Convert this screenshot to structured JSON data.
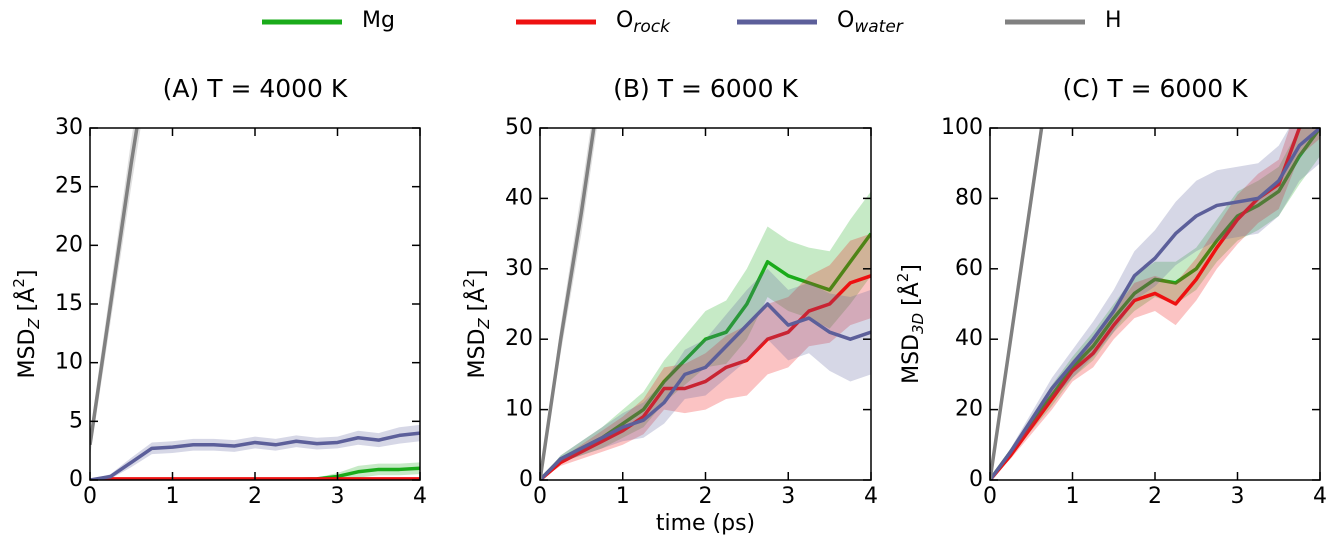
{
  "chart_data": [
    {
      "type": "line",
      "title": "(A) T = 4000 K",
      "ylabel": {
        "base": "MSD",
        "sub": "Z",
        "unit": " [Å",
        "sup": "2",
        "close": "]"
      },
      "x": [
        0,
        0.25,
        0.5,
        0.75,
        1,
        1.25,
        1.5,
        1.75,
        2,
        2.25,
        2.5,
        2.75,
        3,
        3.25,
        3.5,
        3.75,
        4
      ],
      "xlim": [
        0,
        4
      ],
      "xticks": [
        0,
        1,
        2,
        3,
        4
      ],
      "ylim": [
        0,
        30
      ],
      "yticks": [
        0,
        5,
        10,
        15,
        20,
        25,
        30
      ],
      "series": [
        {
          "name": "Mg",
          "color": "#1aab1a",
          "values": [
            0,
            0,
            0,
            0,
            0,
            0,
            0,
            0,
            0,
            0,
            0.05,
            0.1,
            0.3,
            0.7,
            0.9,
            0.9,
            1.0
          ],
          "errors": [
            0,
            0,
            0,
            0,
            0,
            0,
            0,
            0,
            0,
            0,
            0.05,
            0.1,
            0.3,
            0.5,
            0.5,
            0.5,
            0.5
          ]
        },
        {
          "name": "O",
          "name_sub": "rock",
          "color": "#ee1111",
          "values": [
            0,
            0.1,
            0.1,
            0.1,
            0.1,
            0.1,
            0.1,
            0.1,
            0.1,
            0.1,
            0.1,
            0.1,
            0.1,
            0.1,
            0.1,
            0.1,
            0.1
          ],
          "errors": [
            0,
            0.05,
            0.05,
            0.05,
            0.05,
            0.05,
            0.05,
            0.05,
            0.05,
            0.05,
            0.05,
            0.05,
            0.05,
            0.05,
            0.05,
            0.05,
            0.05
          ]
        },
        {
          "name": "O",
          "name_sub": "water",
          "color": "#5c5f9a",
          "values": [
            0,
            0.3,
            1.5,
            2.7,
            2.8,
            3.0,
            3.0,
            2.9,
            3.2,
            3.0,
            3.3,
            3.1,
            3.2,
            3.6,
            3.4,
            3.8,
            4.0
          ],
          "errors": [
            0,
            0.2,
            0.4,
            0.5,
            0.5,
            0.5,
            0.5,
            0.5,
            0.5,
            0.5,
            0.5,
            0.5,
            0.5,
            0.6,
            0.6,
            0.7,
            0.7
          ]
        },
        {
          "name": "H",
          "color": "#808080",
          "values": [
            3,
            15,
            27,
            38,
            null,
            null,
            null,
            null,
            null,
            null,
            null,
            null,
            null,
            null,
            null,
            null,
            null
          ],
          "errors": [
            1,
            1.5,
            2,
            2,
            null,
            null,
            null,
            null,
            null,
            null,
            null,
            null,
            null,
            null,
            null,
            null,
            null
          ]
        }
      ]
    },
    {
      "type": "line",
      "title": "(B) T = 6000 K",
      "xlabel": "time (ps)",
      "ylabel": {
        "base": "MSD",
        "sub": "Z",
        "unit": " [Å",
        "sup": "2",
        "close": "]"
      },
      "x": [
        0,
        0.25,
        0.5,
        0.75,
        1,
        1.25,
        1.5,
        1.75,
        2,
        2.25,
        2.5,
        2.75,
        3,
        3.25,
        3.5,
        3.75,
        4
      ],
      "xlim": [
        0,
        4
      ],
      "xticks": [
        0,
        1,
        2,
        3,
        4
      ],
      "ylim": [
        0,
        50
      ],
      "yticks": [
        0,
        10,
        20,
        30,
        40,
        50
      ],
      "series": [
        {
          "name": "Mg",
          "color": "#1aab1a",
          "values": [
            0,
            3,
            4.5,
            6,
            8,
            10,
            14,
            17,
            20,
            21,
            25,
            31,
            29,
            28,
            27,
            31,
            35
          ],
          "errors": [
            0,
            0.5,
            1,
            1.5,
            2,
            2.5,
            3,
            3.5,
            4,
            4.5,
            5,
            5,
            5,
            5,
            5.5,
            6,
            6
          ]
        },
        {
          "name": "O",
          "name_sub": "rock",
          "color": "#ee1111",
          "values": [
            0,
            2.5,
            4,
            5.5,
            7,
            9,
            13,
            13,
            14,
            16,
            17,
            20,
            21,
            24,
            25,
            28,
            29
          ],
          "errors": [
            0,
            0.5,
            1,
            1.5,
            2,
            2.5,
            3,
            3.5,
            4,
            4.5,
            5,
            5,
            5,
            5,
            5.5,
            6,
            6
          ]
        },
        {
          "name": "O",
          "name_sub": "water",
          "color": "#5c5f9a",
          "values": [
            0,
            3,
            4.5,
            6,
            7.5,
            8.5,
            11,
            15,
            16,
            19,
            22,
            25,
            22,
            23,
            21,
            20,
            21
          ],
          "errors": [
            0,
            0.5,
            1,
            1.5,
            2,
            2.5,
            3,
            3.5,
            4,
            4.5,
            5,
            5,
            5,
            5,
            5.5,
            6,
            6
          ]
        },
        {
          "name": "H",
          "color": "#808080",
          "values": [
            0,
            20,
            38,
            58,
            null,
            null,
            null,
            null,
            null,
            null,
            null,
            null,
            null,
            null,
            null,
            null,
            null
          ],
          "errors": [
            0,
            2,
            3,
            3,
            null,
            null,
            null,
            null,
            null,
            null,
            null,
            null,
            null,
            null,
            null,
            null,
            null
          ]
        }
      ]
    },
    {
      "type": "line",
      "title": "(C) T = 6000 K",
      "ylabel": {
        "base": "MSD",
        "sub": "3D",
        "unit": " [Å",
        "sup": "2",
        "close": "]"
      },
      "x": [
        0,
        0.25,
        0.5,
        0.75,
        1,
        1.25,
        1.5,
        1.75,
        2,
        2.25,
        2.5,
        2.75,
        3,
        3.25,
        3.5,
        3.75,
        4
      ],
      "xlim": [
        0,
        4
      ],
      "xticks": [
        0,
        1,
        2,
        3,
        4
      ],
      "ylim": [
        0,
        100
      ],
      "yticks": [
        0,
        20,
        40,
        60,
        80,
        100
      ],
      "series": [
        {
          "name": "Mg",
          "color": "#1aab1a",
          "values": [
            0,
            8,
            16,
            24,
            32,
            38,
            46,
            53,
            57,
            56,
            60,
            68,
            75,
            78,
            82,
            92,
            100
          ],
          "errors": [
            0,
            1,
            2,
            3,
            3,
            4,
            4,
            5,
            5,
            6,
            6,
            6,
            7,
            7,
            7,
            8,
            8
          ]
        },
        {
          "name": "O",
          "name_sub": "rock",
          "color": "#ee1111",
          "values": [
            0,
            7,
            15,
            23,
            31,
            36,
            44,
            51,
            53,
            50,
            57,
            66,
            74,
            80,
            84,
            100,
            105
          ],
          "errors": [
            0,
            1,
            2,
            3,
            3,
            4,
            4,
            5,
            5,
            6,
            6,
            6,
            7,
            7,
            7,
            8,
            8
          ]
        },
        {
          "name": "O",
          "name_sub": "water",
          "color": "#5c5f9a",
          "values": [
            0,
            8,
            17,
            26,
            33,
            40,
            48,
            58,
            63,
            70,
            75,
            78,
            79,
            80,
            85,
            95,
            100
          ],
          "errors": [
            0,
            1,
            2,
            3,
            4,
            5,
            6,
            7,
            8,
            9,
            10,
            10,
            10,
            10,
            10,
            10,
            10
          ]
        },
        {
          "name": "H",
          "color": "#808080",
          "values": [
            0,
            40,
            80,
            120,
            null,
            null,
            null,
            null,
            null,
            null,
            null,
            null,
            null,
            null,
            null,
            null,
            null
          ],
          "errors": [
            0,
            2,
            3,
            3,
            null,
            null,
            null,
            null,
            null,
            null,
            null,
            null,
            null,
            null,
            null,
            null,
            null
          ]
        }
      ]
    }
  ]
}
